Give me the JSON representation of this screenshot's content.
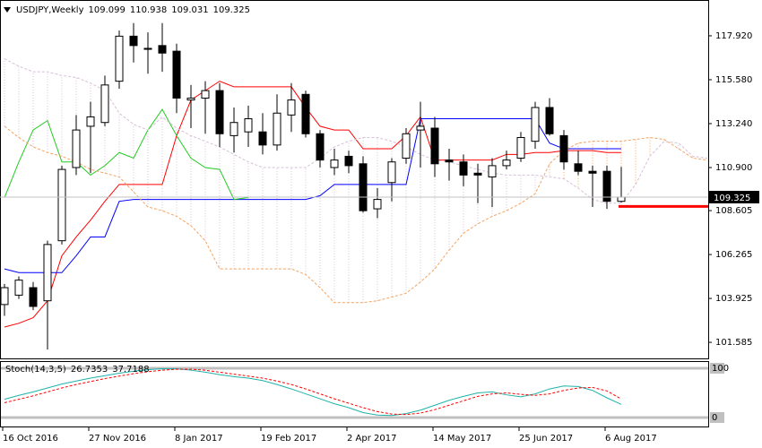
{
  "chart_data": [
    {
      "type": "candlestick",
      "title": "USDJPY,Weekly",
      "categories": [
        "16 Oct 2016",
        null,
        null,
        null,
        null,
        null,
        "27 Nov 2016",
        null,
        null,
        null,
        null,
        null,
        "8 Jan 2017",
        null,
        null,
        null,
        null,
        null,
        "19 Feb 2017",
        null,
        null,
        null,
        null,
        null,
        "2 Apr 2017",
        null,
        null,
        null,
        null,
        null,
        "14 May 2017",
        null,
        null,
        null,
        null,
        null,
        "25 Jun 2017",
        null,
        null,
        null,
        null,
        null,
        "6 Aug 2017",
        null,
        null,
        null,
        null,
        null,
        null,
        null
      ],
      "open": [
        103.6,
        104.1,
        104.5,
        103.8,
        107.0,
        110.9,
        113.1,
        113.3,
        115.5,
        117.9,
        117.2,
        117.4,
        117.1,
        114.5,
        114.6,
        115.0,
        112.6,
        112.8,
        112.8,
        112.1,
        113.7,
        114.8,
        112.7,
        110.9,
        111.5,
        111.1,
        108.7,
        110.1,
        111.4,
        112.9,
        113.0,
        111.3,
        111.2,
        110.6,
        110.4,
        111.0,
        111.4,
        112.3,
        114.1,
        112.6,
        111.1,
        110.7,
        110.7,
        109.099,
        null,
        null,
        null,
        null,
        null,
        null
      ],
      "high": [
        104.7,
        105.1,
        104.8,
        107.0,
        111.0,
        113.7,
        114.4,
        115.8,
        118.2,
        118.6,
        118.1,
        118.6,
        117.5,
        115.3,
        115.5,
        115.4,
        114.1,
        114.2,
        113.8,
        114.8,
        115.4,
        115.0,
        112.9,
        111.9,
        111.8,
        111.5,
        109.8,
        111.4,
        113.0,
        114.4,
        113.6,
        111.9,
        111.6,
        111.1,
        111.4,
        111.8,
        112.8,
        114.4,
        114.6,
        112.9,
        111.8,
        111.0,
        111.0,
        110.938,
        null,
        null,
        null,
        null,
        null,
        null
      ],
      "low": [
        103.0,
        103.9,
        103.3,
        101.2,
        106.8,
        110.5,
        110.6,
        113.1,
        115.1,
        116.5,
        115.9,
        116.0,
        113.8,
        113.0,
        112.7,
        112.0,
        111.7,
        112.0,
        111.6,
        111.8,
        112.8,
        112.5,
        110.9,
        110.5,
        110.6,
        108.5,
        108.2,
        109.1,
        111.1,
        110.9,
        110.4,
        110.2,
        109.9,
        109.0,
        108.8,
        110.8,
        111.2,
        111.9,
        112.6,
        110.8,
        110.5,
        108.8,
        108.7,
        109.031,
        null,
        null,
        null,
        null,
        null,
        null
      ],
      "close": [
        104.5,
        104.9,
        103.5,
        106.8,
        110.8,
        112.9,
        113.6,
        115.3,
        117.9,
        117.4,
        117.25,
        117.0,
        114.6,
        114.6,
        115.0,
        112.7,
        113.3,
        113.5,
        112.1,
        113.8,
        114.5,
        112.7,
        111.3,
        111.3,
        111.0,
        108.6,
        109.2,
        111.2,
        112.7,
        113.1,
        111.1,
        111.2,
        110.5,
        110.5,
        111.0,
        111.3,
        112.5,
        114.1,
        112.7,
        111.2,
        110.7,
        110.6,
        109.1,
        109.325,
        null,
        null,
        null,
        null,
        null,
        null
      ],
      "up_color": "#ffffff",
      "down_color": "#000000",
      "series": [
        {
          "color": "#ff0000",
          "values": [
            102.4,
            102.6,
            102.9,
            103.8,
            106.2,
            107.2,
            108.1,
            109.1,
            110.0,
            110.0,
            110.0,
            110.0,
            112.6,
            114.5,
            115.0,
            115.5,
            115.2,
            115.2,
            115.2,
            115.2,
            115.2,
            114.1,
            113.1,
            112.9,
            112.9,
            111.9,
            111.9,
            111.9,
            112.6,
            113.6,
            111.3,
            111.3,
            111.3,
            111.3,
            111.3,
            111.6,
            111.6,
            111.7,
            111.7,
            111.8,
            111.8,
            111.8,
            111.7,
            111.7,
            null,
            null,
            null,
            null,
            null,
            null
          ]
        },
        {
          "color": "#0000ff",
          "values": [
            105.5,
            105.3,
            105.3,
            105.3,
            105.3,
            106.2,
            107.2,
            107.2,
            109.1,
            109.2,
            109.2,
            109.2,
            109.2,
            109.2,
            109.2,
            109.2,
            109.2,
            109.2,
            109.2,
            109.2,
            109.2,
            109.2,
            109.4,
            110.0,
            110.0,
            110.0,
            110.0,
            110.0,
            110.0,
            113.5,
            113.5,
            113.5,
            113.5,
            113.5,
            113.5,
            113.5,
            113.5,
            113.5,
            112.2,
            111.9,
            111.9,
            111.9,
            111.9,
            111.9,
            null,
            null,
            null,
            null,
            null,
            null
          ]
        },
        {
          "color": "#22cc22",
          "values": [
            109.3,
            111.2,
            112.9,
            113.4,
            111.2,
            111.2,
            110.5,
            111.0,
            111.7,
            111.4,
            112.9,
            114.0,
            112.6,
            111.4,
            110.9,
            110.8,
            109.2,
            109.3,
            null,
            null,
            null,
            null,
            null,
            null,
            null,
            null,
            null,
            null,
            null,
            null,
            null,
            null,
            null,
            null,
            null,
            null,
            null,
            null,
            null,
            null,
            null,
            null,
            null,
            null,
            null,
            null,
            null,
            null,
            null,
            null
          ]
        },
        {
          "color": "#f4a460",
          "dashed": true,
          "cloud": true,
          "values": [
            113.1,
            112.5,
            112.0,
            111.7,
            111.5,
            111.2,
            110.8,
            110.6,
            110.4,
            109.6,
            108.8,
            108.6,
            108.3,
            107.8,
            107.0,
            105.5,
            105.5,
            105.5,
            105.5,
            105.5,
            105.5,
            105.2,
            104.5,
            103.7,
            103.7,
            103.7,
            103.8,
            104.0,
            104.2,
            104.8,
            105.5,
            106.5,
            107.4,
            107.9,
            108.3,
            108.6,
            109.0,
            109.5,
            111.1,
            111.8,
            112.2,
            112.3,
            112.3,
            112.3,
            112.4,
            112.5,
            112.4,
            111.9,
            111.4,
            111.3
          ]
        },
        {
          "color": "#d8bfd8",
          "dashed": true,
          "cloud": true,
          "values": [
            116.7,
            116.3,
            116.0,
            116.0,
            115.8,
            115.7,
            115.4,
            115.0,
            113.8,
            113.2,
            112.9,
            113.6,
            113.0,
            112.6,
            112.3,
            112.0,
            111.6,
            111.2,
            110.9,
            110.9,
            110.9,
            110.9,
            111.4,
            112.0,
            112.3,
            112.5,
            112.5,
            112.3,
            112.0,
            111.6,
            111.3,
            111.2,
            111.0,
            110.8,
            110.6,
            110.5,
            110.5,
            110.5,
            110.4,
            110.3,
            109.8,
            109.2,
            109.0,
            109.0,
            110.0,
            111.5,
            112.3,
            112.2,
            111.5,
            111.4
          ]
        }
      ],
      "level_line": {
        "value": 108.83,
        "color": "#ff0000"
      },
      "ylim": [
        100.73,
        119.78
      ],
      "yticks": [
        {
          "value": 117.92,
          "label": "117.920"
        },
        {
          "value": 115.58,
          "label": "115.580"
        },
        {
          "value": 113.24,
          "label": "113.240"
        },
        {
          "value": 110.9,
          "label": "110.900"
        },
        108.605,
        106.265,
        103.925,
        101.585
      ],
      "grid": false
    },
    {
      "type": "line",
      "title": "Stoch(14,3,5)",
      "series": [
        {
          "color": "#20b2aa",
          "values": [
            37,
            45,
            52,
            60,
            68,
            74,
            80,
            85,
            90,
            94,
            97,
            99,
            99,
            96,
            92,
            87,
            83,
            80,
            75,
            67,
            58,
            48,
            38,
            28,
            20,
            10,
            5,
            4,
            8,
            15,
            25,
            35,
            43,
            50,
            52,
            46,
            42,
            48,
            58,
            64,
            63,
            55,
            40,
            26.7353,
            null,
            null,
            null,
            null,
            null,
            null
          ]
        },
        {
          "color": "#ff0000",
          "dashed": true,
          "values": [
            30,
            37,
            44,
            52,
            60,
            67,
            73,
            79,
            84,
            89,
            93,
            96,
            98,
            98,
            96,
            92,
            88,
            84,
            80,
            74,
            67,
            58,
            48,
            38,
            29,
            20,
            12,
            7,
            6,
            9,
            16,
            25,
            34,
            43,
            48,
            50,
            47,
            45,
            48,
            55,
            60,
            61,
            54,
            37.7188,
            null,
            null,
            null,
            null,
            null,
            null
          ]
        }
      ],
      "ylim": [
        -18.2,
        112.7
      ],
      "yticks": [
        100,
        0
      ]
    }
  ]
}
